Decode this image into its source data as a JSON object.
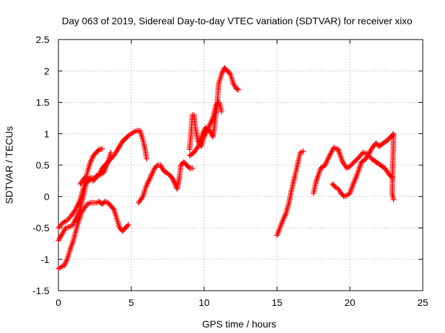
{
  "chart_data": {
    "type": "scatter",
    "title": "Day 063 of 2019, Sidereal Day-to-day VTEC variation (SDTVAR) for receiver xixo",
    "xlabel": "GPS time / hours",
    "ylabel": "SDTVAR / TECUs",
    "xlim": [
      0,
      25
    ],
    "ylim": [
      -1.5,
      2.5
    ],
    "xticks": [
      0,
      5,
      10,
      15,
      20,
      25
    ],
    "xtick_labels": [
      "0",
      "5",
      "10",
      "15",
      "20",
      "25"
    ],
    "yticks": [
      -1.5,
      -1,
      -0.5,
      0,
      0.5,
      1,
      1.5,
      2,
      2.5
    ],
    "ytick_labels": [
      "-1.5",
      "-1",
      "-0.5",
      "0",
      "0.5",
      "1",
      "1.5",
      "2",
      "2.5"
    ],
    "grid": true,
    "marker": "+",
    "color": "#ff0000",
    "series": [
      {
        "points": [
          [
            0.0,
            -0.5
          ],
          [
            0.3,
            -0.42
          ],
          [
            0.6,
            -0.38
          ],
          [
            0.9,
            -0.3
          ],
          [
            1.2,
            -0.2
          ],
          [
            1.5,
            -0.05
          ],
          [
            1.8,
            0.2
          ],
          [
            2.0,
            0.4
          ],
          [
            2.2,
            0.55
          ],
          [
            2.4,
            0.65
          ],
          [
            2.6,
            0.7
          ],
          [
            2.8,
            0.75
          ],
          [
            3.0,
            0.76
          ]
        ]
      },
      {
        "points": [
          [
            0.0,
            -0.7
          ],
          [
            0.2,
            -0.62
          ],
          [
            0.5,
            -0.5
          ],
          [
            0.8,
            -0.48
          ],
          [
            1.0,
            -0.45
          ],
          [
            1.2,
            -0.35
          ],
          [
            1.5,
            -0.2
          ],
          [
            1.7,
            0.0
          ],
          [
            1.9,
            0.2
          ],
          [
            2.2,
            0.3
          ],
          [
            2.5,
            0.28
          ],
          [
            2.8,
            0.35
          ],
          [
            3.0,
            0.45
          ],
          [
            3.2,
            0.5
          ],
          [
            3.4,
            0.55
          ],
          [
            3.6,
            0.6
          ],
          [
            3.8,
            0.65
          ],
          [
            4.0,
            0.72
          ],
          [
            4.2,
            0.8
          ],
          [
            4.4,
            0.88
          ],
          [
            4.6,
            0.92
          ],
          [
            4.8,
            0.97
          ],
          [
            5.0,
            1.0
          ],
          [
            5.2,
            1.03
          ],
          [
            5.4,
            1.05
          ],
          [
            5.6,
            1.05
          ],
          [
            5.8,
            0.9
          ],
          [
            5.95,
            0.75
          ],
          [
            6.05,
            0.6
          ]
        ]
      },
      {
        "points": [
          [
            0.0,
            -1.15
          ],
          [
            0.2,
            -1.12
          ],
          [
            0.4,
            -1.1
          ],
          [
            0.6,
            -1.0
          ],
          [
            0.8,
            -0.85
          ],
          [
            1.0,
            -0.72
          ],
          [
            1.2,
            -0.55
          ],
          [
            1.4,
            -0.38
          ],
          [
            1.6,
            -0.25
          ],
          [
            1.8,
            -0.18
          ],
          [
            2.0,
            -0.12
          ],
          [
            2.2,
            -0.1
          ],
          [
            2.4,
            -0.1
          ],
          [
            2.6,
            -0.1
          ],
          [
            2.8,
            -0.08
          ],
          [
            3.0,
            -0.12
          ],
          [
            3.2,
            -0.08
          ],
          [
            3.4,
            -0.1
          ],
          [
            3.6,
            -0.15
          ],
          [
            3.8,
            -0.2
          ],
          [
            4.0,
            -0.35
          ],
          [
            4.2,
            -0.5
          ],
          [
            4.4,
            -0.55
          ],
          [
            4.6,
            -0.5
          ],
          [
            4.8,
            -0.45
          ]
        ]
      },
      {
        "points": [
          [
            1.5,
            0.2
          ],
          [
            1.8,
            0.3
          ],
          [
            2.1,
            0.28
          ],
          [
            2.4,
            0.25
          ],
          [
            2.6,
            0.33
          ],
          [
            2.9,
            0.35
          ],
          [
            3.1,
            0.38
          ],
          [
            3.4,
            0.55
          ],
          [
            3.6,
            0.7
          ]
        ]
      },
      {
        "points": [
          [
            5.5,
            -0.1
          ],
          [
            5.8,
            0.0
          ],
          [
            6.0,
            0.15
          ],
          [
            6.2,
            0.25
          ],
          [
            6.4,
            0.35
          ],
          [
            6.6,
            0.45
          ],
          [
            6.8,
            0.5
          ],
          [
            7.0,
            0.5
          ],
          [
            7.2,
            0.42
          ],
          [
            7.4,
            0.38
          ],
          [
            7.6,
            0.35
          ],
          [
            7.8,
            0.3
          ],
          [
            8.0,
            0.2
          ],
          [
            8.15,
            0.12
          ],
          [
            8.3,
            0.3
          ],
          [
            8.4,
            0.5
          ],
          [
            8.6,
            0.55
          ],
          [
            8.8,
            0.5
          ],
          [
            9.0,
            0.45
          ],
          [
            9.2,
            0.45
          ]
        ]
      },
      {
        "points": [
          [
            9.0,
            0.75
          ],
          [
            9.1,
            1.0
          ],
          [
            9.2,
            1.3
          ],
          [
            9.3,
            1.3
          ],
          [
            9.4,
            1.1
          ],
          [
            9.55,
            0.9
          ],
          [
            9.8,
            0.8
          ],
          [
            10.0,
            0.95
          ],
          [
            10.3,
            1.1
          ],
          [
            10.6,
            1.25
          ],
          [
            10.8,
            1.45
          ],
          [
            11.0,
            1.5
          ],
          [
            11.1,
            1.45
          ],
          [
            11.2,
            1.35
          ]
        ]
      },
      {
        "points": [
          [
            9.0,
            0.65
          ],
          [
            9.3,
            0.7
          ],
          [
            9.6,
            0.8
          ],
          [
            9.9,
            1.0
          ],
          [
            10.1,
            1.1
          ],
          [
            10.4,
            1.05
          ],
          [
            10.6,
            0.95
          ],
          [
            10.7,
            1.1
          ],
          [
            10.9,
            1.5
          ],
          [
            11.0,
            1.8
          ],
          [
            11.2,
            1.95
          ],
          [
            11.4,
            2.05
          ],
          [
            11.6,
            2.0
          ],
          [
            11.8,
            1.95
          ],
          [
            12.0,
            1.8
          ],
          [
            12.2,
            1.72
          ],
          [
            12.35,
            1.7
          ]
        ]
      },
      {
        "points": [
          [
            15.0,
            -0.62
          ],
          [
            15.2,
            -0.5
          ],
          [
            15.4,
            -0.38
          ],
          [
            15.6,
            -0.28
          ],
          [
            15.8,
            -0.12
          ],
          [
            16.0,
            0.1
          ],
          [
            16.2,
            0.3
          ],
          [
            16.4,
            0.5
          ],
          [
            16.6,
            0.7
          ],
          [
            16.8,
            0.72
          ]
        ]
      },
      {
        "points": [
          [
            17.5,
            0.05
          ],
          [
            17.7,
            0.25
          ],
          [
            18.0,
            0.45
          ],
          [
            18.3,
            0.5
          ],
          [
            18.6,
            0.65
          ],
          [
            18.9,
            0.78
          ],
          [
            19.2,
            0.75
          ],
          [
            19.5,
            0.55
          ],
          [
            19.8,
            0.45
          ],
          [
            20.0,
            0.48
          ],
          [
            20.3,
            0.55
          ],
          [
            20.6,
            0.62
          ],
          [
            20.9,
            0.7
          ],
          [
            21.2,
            0.68
          ],
          [
            21.5,
            0.6
          ],
          [
            21.8,
            0.55
          ],
          [
            22.1,
            0.5
          ],
          [
            22.4,
            0.45
          ],
          [
            22.7,
            0.35
          ],
          [
            22.9,
            0.3
          ]
        ]
      },
      {
        "points": [
          [
            18.8,
            0.2
          ],
          [
            19.0,
            0.15
          ],
          [
            19.2,
            0.12
          ],
          [
            19.4,
            0.05
          ],
          [
            19.6,
            0.0
          ],
          [
            19.8,
            0.02
          ],
          [
            20.0,
            0.05
          ],
          [
            20.2,
            0.18
          ],
          [
            20.5,
            0.35
          ],
          [
            20.8,
            0.55
          ],
          [
            21.1,
            0.6
          ],
          [
            21.4,
            0.72
          ],
          [
            21.6,
            0.8
          ],
          [
            21.8,
            0.85
          ],
          [
            22.0,
            0.8
          ],
          [
            22.3,
            0.85
          ],
          [
            22.6,
            0.9
          ],
          [
            22.8,
            0.95
          ],
          [
            23.0,
            1.0
          ],
          [
            22.9,
            0.05
          ],
          [
            23.0,
            -0.05
          ]
        ]
      }
    ]
  }
}
